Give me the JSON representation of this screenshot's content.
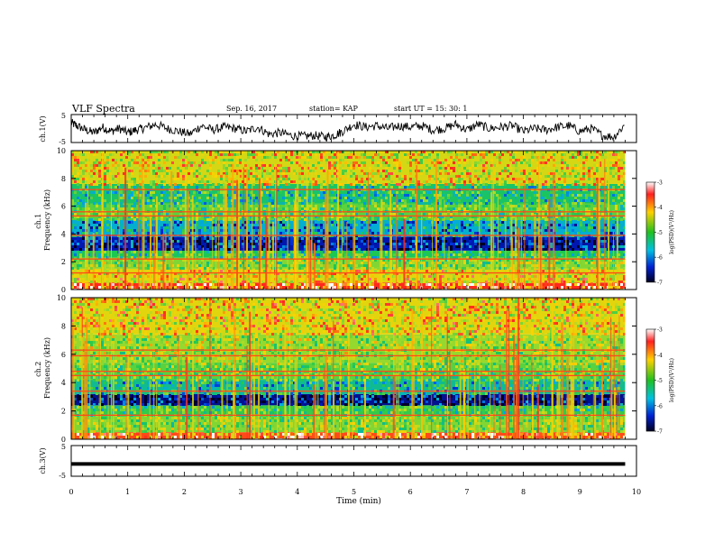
{
  "header": {
    "title": "VLF Spectra",
    "date": "Sep. 16, 2017",
    "station": "station= KAP",
    "start": "start  UT =   15: 30: 1"
  },
  "chart_data": [
    {
      "type": "line",
      "ylabel": "ch.1(V)",
      "ylim": [
        -5,
        5
      ],
      "y_ticks": [
        "5",
        "-5"
      ],
      "xlim": [
        0,
        10
      ],
      "grid": false,
      "series": [
        {
          "x": [
            0,
            0.1,
            0.25,
            0.4,
            0.55,
            0.7,
            0.85,
            1.0,
            1.15,
            1.3,
            1.5,
            1.7,
            1.9,
            2.1,
            2.3,
            2.5,
            2.7,
            2.9,
            3.1,
            3.3,
            3.5,
            3.7,
            3.9,
            4.1,
            4.3,
            4.5,
            4.65,
            4.8,
            5.0,
            5.2,
            5.4,
            5.6,
            5.8,
            6.0,
            6.2,
            6.4,
            6.6,
            6.8,
            7.0,
            7.2,
            7.4,
            7.6,
            7.8,
            8.0,
            8.2,
            8.4,
            8.6,
            8.8,
            9.0,
            9.2,
            9.4,
            9.6,
            9.8
          ],
          "values": [
            2.0,
            1.0,
            -0.5,
            -1.5,
            0.5,
            -1.0,
            0.0,
            -1.5,
            -0.5,
            0.2,
            1.5,
            0.0,
            -1.0,
            -2.0,
            1.0,
            -0.5,
            0.5,
            0.0,
            -1.0,
            0.5,
            -2.0,
            -1.5,
            -2.5,
            -2.8,
            -2.5,
            -3.0,
            -2.5,
            -1.0,
            1.5,
            0.5,
            1.0,
            0.0,
            1.0,
            0.5,
            1.0,
            -0.5,
            0.0,
            1.5,
            -0.5,
            1.5,
            0.0,
            0.5,
            1.0,
            -1.0,
            0.0,
            -0.5,
            0.5,
            1.0,
            -1.0,
            0.0,
            -2.5,
            -3.0,
            1.5
          ]
        }
      ]
    },
    {
      "type": "heatmap",
      "ylabel": "ch.1\nFrequency (kHz)",
      "ylim": [
        0,
        10
      ],
      "y_ticks": [
        "0",
        "2",
        "4",
        "6",
        "8",
        "10"
      ],
      "xlim": [
        0,
        10
      ],
      "colorbar": {
        "label": "log(PSD)(V²/Hz)",
        "range": [
          -7,
          -3
        ],
        "ticks": [
          "-3",
          "-4",
          "-5",
          "-6",
          "-7"
        ]
      },
      "bands_khz": [
        {
          "from": 0.0,
          "to": 0.5,
          "level": -3.5
        },
        {
          "from": 0.5,
          "to": 1.5,
          "level": -4.2
        },
        {
          "from": 1.5,
          "to": 2.3,
          "level": -4.8
        },
        {
          "from": 2.3,
          "to": 2.8,
          "level": -5.3
        },
        {
          "from": 2.8,
          "to": 3.8,
          "level": -6.6
        },
        {
          "from": 3.8,
          "to": 5.0,
          "level": -5.9
        },
        {
          "from": 5.0,
          "to": 6.2,
          "level": -5.0
        },
        {
          "from": 6.2,
          "to": 7.6,
          "level": -5.4
        },
        {
          "from": 7.6,
          "to": 10.0,
          "level": -4.3
        }
      ],
      "lines_khz": [
        1.2,
        2.2,
        3.9,
        5.3,
        5.6,
        7.2
      ]
    },
    {
      "type": "heatmap",
      "ylabel": "ch.2\nFrequency (kHz)",
      "ylim": [
        0,
        10
      ],
      "y_ticks": [
        "0",
        "2",
        "4",
        "6",
        "8",
        "10"
      ],
      "xlim": [
        0,
        10
      ],
      "colorbar": {
        "label": "log(PSD)(V²/Hz)",
        "range": [
          -7,
          -3
        ],
        "ticks": [
          "-3",
          "-4",
          "-5",
          "-6",
          "-7"
        ]
      },
      "bands_khz": [
        {
          "from": 0.0,
          "to": 0.5,
          "level": -3.6
        },
        {
          "from": 0.5,
          "to": 1.6,
          "level": -4.8
        },
        {
          "from": 1.6,
          "to": 2.4,
          "level": -5.2
        },
        {
          "from": 2.4,
          "to": 3.2,
          "level": -6.7
        },
        {
          "from": 3.2,
          "to": 4.2,
          "level": -5.6
        },
        {
          "from": 4.2,
          "to": 5.4,
          "level": -5.0
        },
        {
          "from": 5.4,
          "to": 7.4,
          "level": -4.7
        },
        {
          "from": 7.4,
          "to": 10.0,
          "level": -4.2
        }
      ],
      "lines_khz": [
        1.7,
        3.4,
        4.5,
        4.8,
        5.9,
        6.3
      ]
    },
    {
      "type": "line",
      "ylabel": "ch.3(V)",
      "ylim": [
        -5,
        5
      ],
      "y_ticks": [
        "5",
        "-5"
      ],
      "xlim": [
        0,
        10
      ],
      "xlabel": "Time  (min)",
      "x_ticks": [
        "0",
        "1",
        "2",
        "3",
        "4",
        "5",
        "6",
        "7",
        "8",
        "9",
        "10"
      ],
      "series": [
        {
          "x": [
            0,
            9.8
          ],
          "values": [
            -1.0,
            -1.0
          ]
        }
      ]
    }
  ]
}
